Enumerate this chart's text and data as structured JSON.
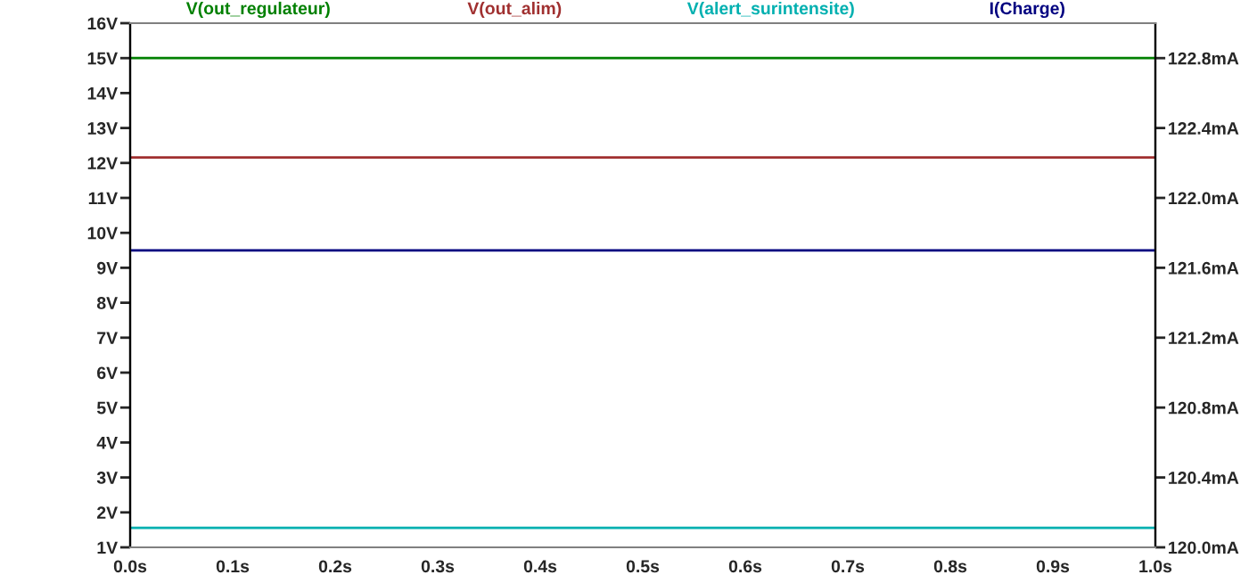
{
  "chart_data": {
    "type": "line",
    "x": [
      0.0,
      1.0
    ],
    "series": [
      {
        "name": "V(out_regulateur)",
        "color": "#008000",
        "values": [
          15.0,
          15.0
        ]
      },
      {
        "name": "V(out_alim)",
        "color": "#a03030",
        "values": [
          12.16,
          12.16
        ]
      },
      {
        "name": "V(alert_surintensite)",
        "color": "#00b0b0",
        "values": [
          1.56,
          1.56
        ]
      },
      {
        "name": "I(Charge)",
        "color": "#000080",
        "values": [
          121.7,
          121.7
        ],
        "axis": "y2"
      }
    ],
    "xlim": [
      0.0,
      1.0
    ],
    "xticks": [
      {
        "value": 0.0,
        "label": "0.0s"
      },
      {
        "value": 0.1,
        "label": "0.1s"
      },
      {
        "value": 0.2,
        "label": "0.2s"
      },
      {
        "value": 0.3,
        "label": "0.3s"
      },
      {
        "value": 0.4,
        "label": "0.4s"
      },
      {
        "value": 0.5,
        "label": "0.5s"
      },
      {
        "value": 0.6,
        "label": "0.6s"
      },
      {
        "value": 0.7,
        "label": "0.7s"
      },
      {
        "value": 0.8,
        "label": "0.8s"
      },
      {
        "value": 0.9,
        "label": "0.9s"
      },
      {
        "value": 1.0,
        "label": "1.0s"
      }
    ],
    "ylim": [
      1,
      16
    ],
    "yticks": [
      {
        "value": 1,
        "label": "1V"
      },
      {
        "value": 2,
        "label": "2V"
      },
      {
        "value": 3,
        "label": "3V"
      },
      {
        "value": 4,
        "label": "4V"
      },
      {
        "value": 5,
        "label": "5V"
      },
      {
        "value": 6,
        "label": "6V"
      },
      {
        "value": 7,
        "label": "7V"
      },
      {
        "value": 8,
        "label": "8V"
      },
      {
        "value": 9,
        "label": "9V"
      },
      {
        "value": 10,
        "label": "10V"
      },
      {
        "value": 11,
        "label": "11V"
      },
      {
        "value": 12,
        "label": "12V"
      },
      {
        "value": 13,
        "label": "13V"
      },
      {
        "value": 14,
        "label": "14V"
      },
      {
        "value": 15,
        "label": "15V"
      },
      {
        "value": 16,
        "label": "16V"
      }
    ],
    "y2lim": [
      120.0,
      123.0
    ],
    "y2ticks": [
      {
        "value": 120.0,
        "label": "120.0mA"
      },
      {
        "value": 120.4,
        "label": "120.4mA"
      },
      {
        "value": 120.8,
        "label": "120.8mA"
      },
      {
        "value": 121.2,
        "label": "121.2mA"
      },
      {
        "value": 121.6,
        "label": "121.6mA"
      },
      {
        "value": 122.0,
        "label": "122.0mA"
      },
      {
        "value": 122.4,
        "label": "122.4mA"
      },
      {
        "value": 122.8,
        "label": "122.8mA"
      }
    ],
    "grid": false,
    "legend": "top",
    "line_style": "solid",
    "marker": "none"
  }
}
